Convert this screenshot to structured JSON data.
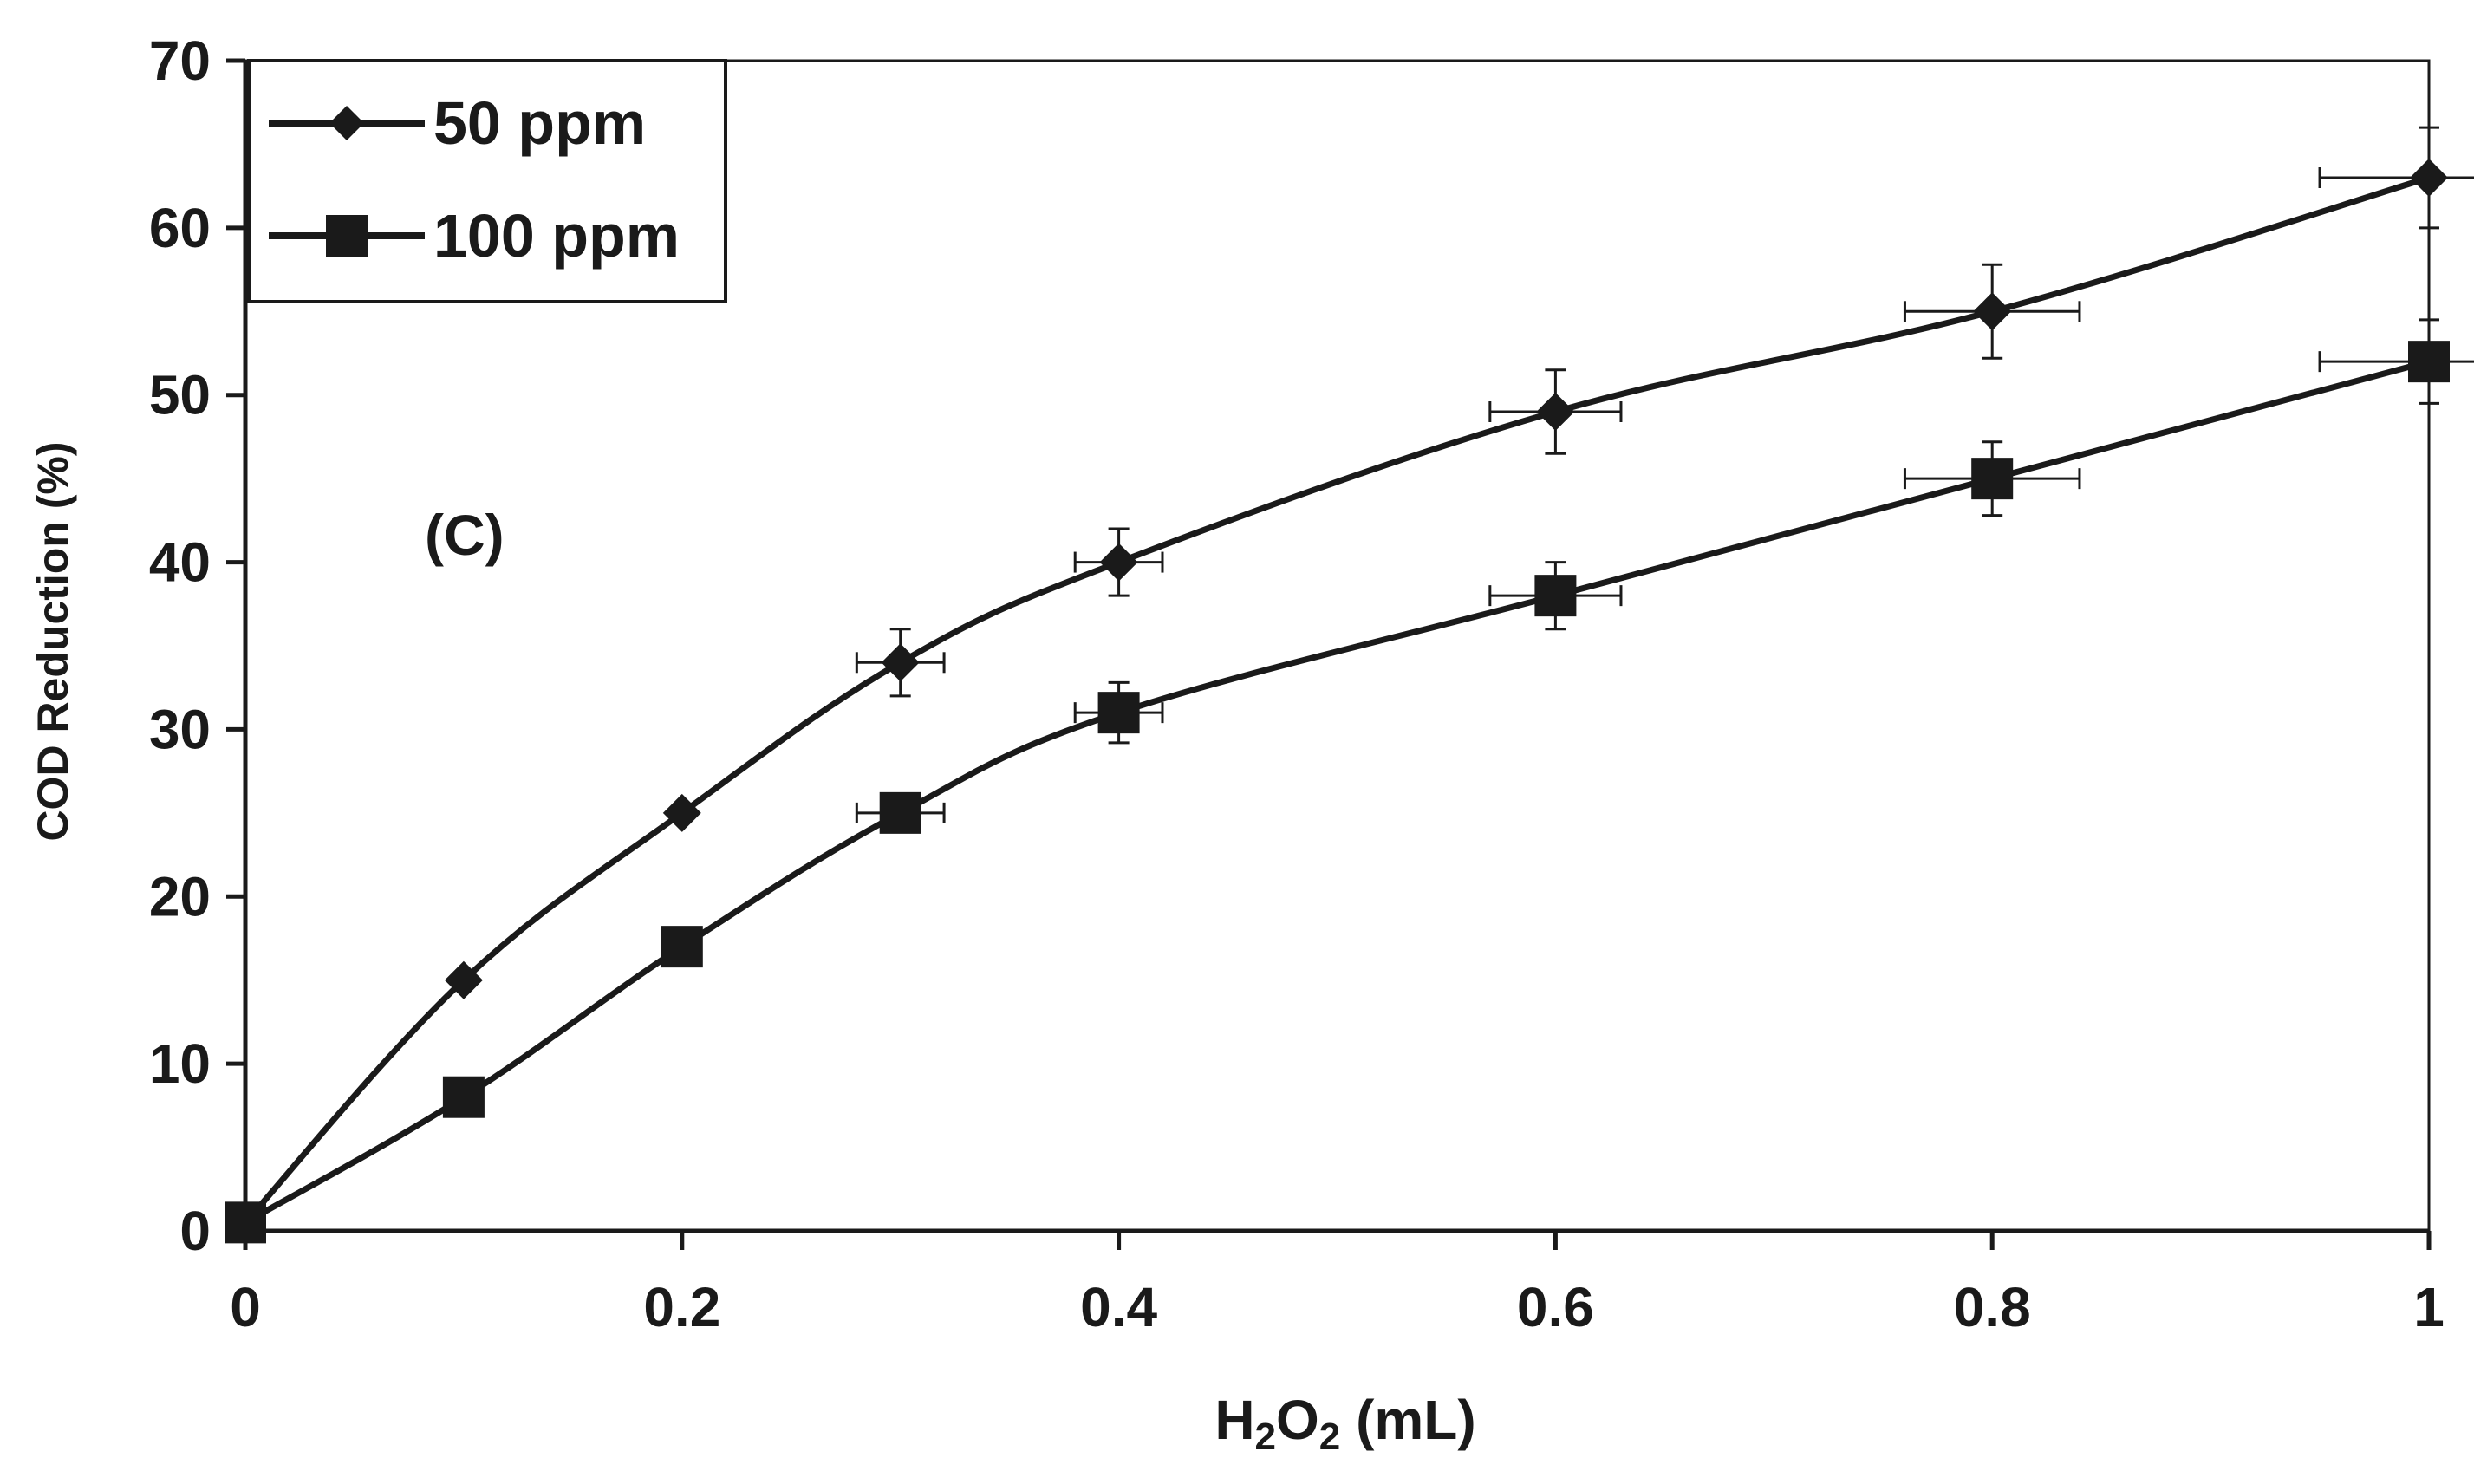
{
  "chart_data": {
    "type": "line",
    "xlabel": "H2O2 (mL)",
    "xlabel_main": "H",
    "xlabel_sub1": "2",
    "xlabel_mid": "O",
    "xlabel_sub2": "2",
    "xlabel_tail": " (mL)",
    "ylabel": "COD Reduction (%)",
    "xlim": [
      0,
      1
    ],
    "ylim": [
      0,
      70
    ],
    "x_ticks": [
      0,
      0.2,
      0.4,
      0.6,
      0.8,
      1
    ],
    "x_tick_labels": [
      "0",
      "0.2",
      "0.4",
      "0.6",
      "0.8",
      "1"
    ],
    "y_ticks": [
      0,
      10,
      20,
      30,
      40,
      50,
      60,
      70
    ],
    "y_tick_labels": [
      "0",
      "10",
      "20",
      "30",
      "40",
      "50",
      "60",
      "70"
    ],
    "annotation": "(C)",
    "legend_position": "top-left",
    "series": [
      {
        "name": "50 ppm",
        "marker": "diamond",
        "x": [
          0,
          0.1,
          0.2,
          0.3,
          0.4,
          0.6,
          0.8,
          1
        ],
        "values": [
          0.5,
          15,
          25,
          34,
          40,
          49,
          55,
          63
        ],
        "y_err": [
          0,
          0,
          0,
          2,
          2,
          2.5,
          2.8,
          3
        ],
        "x_err": [
          0,
          0,
          0,
          0.02,
          0.02,
          0.03,
          0.04,
          0.05
        ]
      },
      {
        "name": "100 ppm",
        "marker": "square",
        "x": [
          0,
          0.1,
          0.2,
          0.3,
          0.4,
          0.6,
          0.8,
          1
        ],
        "values": [
          0.5,
          8,
          17,
          25,
          31,
          38,
          45,
          52
        ],
        "y_err": [
          0,
          0,
          0,
          0,
          1.8,
          2,
          2.2,
          2.5
        ],
        "x_err": [
          0,
          0,
          0,
          0.02,
          0.02,
          0.03,
          0.04,
          0.05
        ]
      }
    ]
  }
}
